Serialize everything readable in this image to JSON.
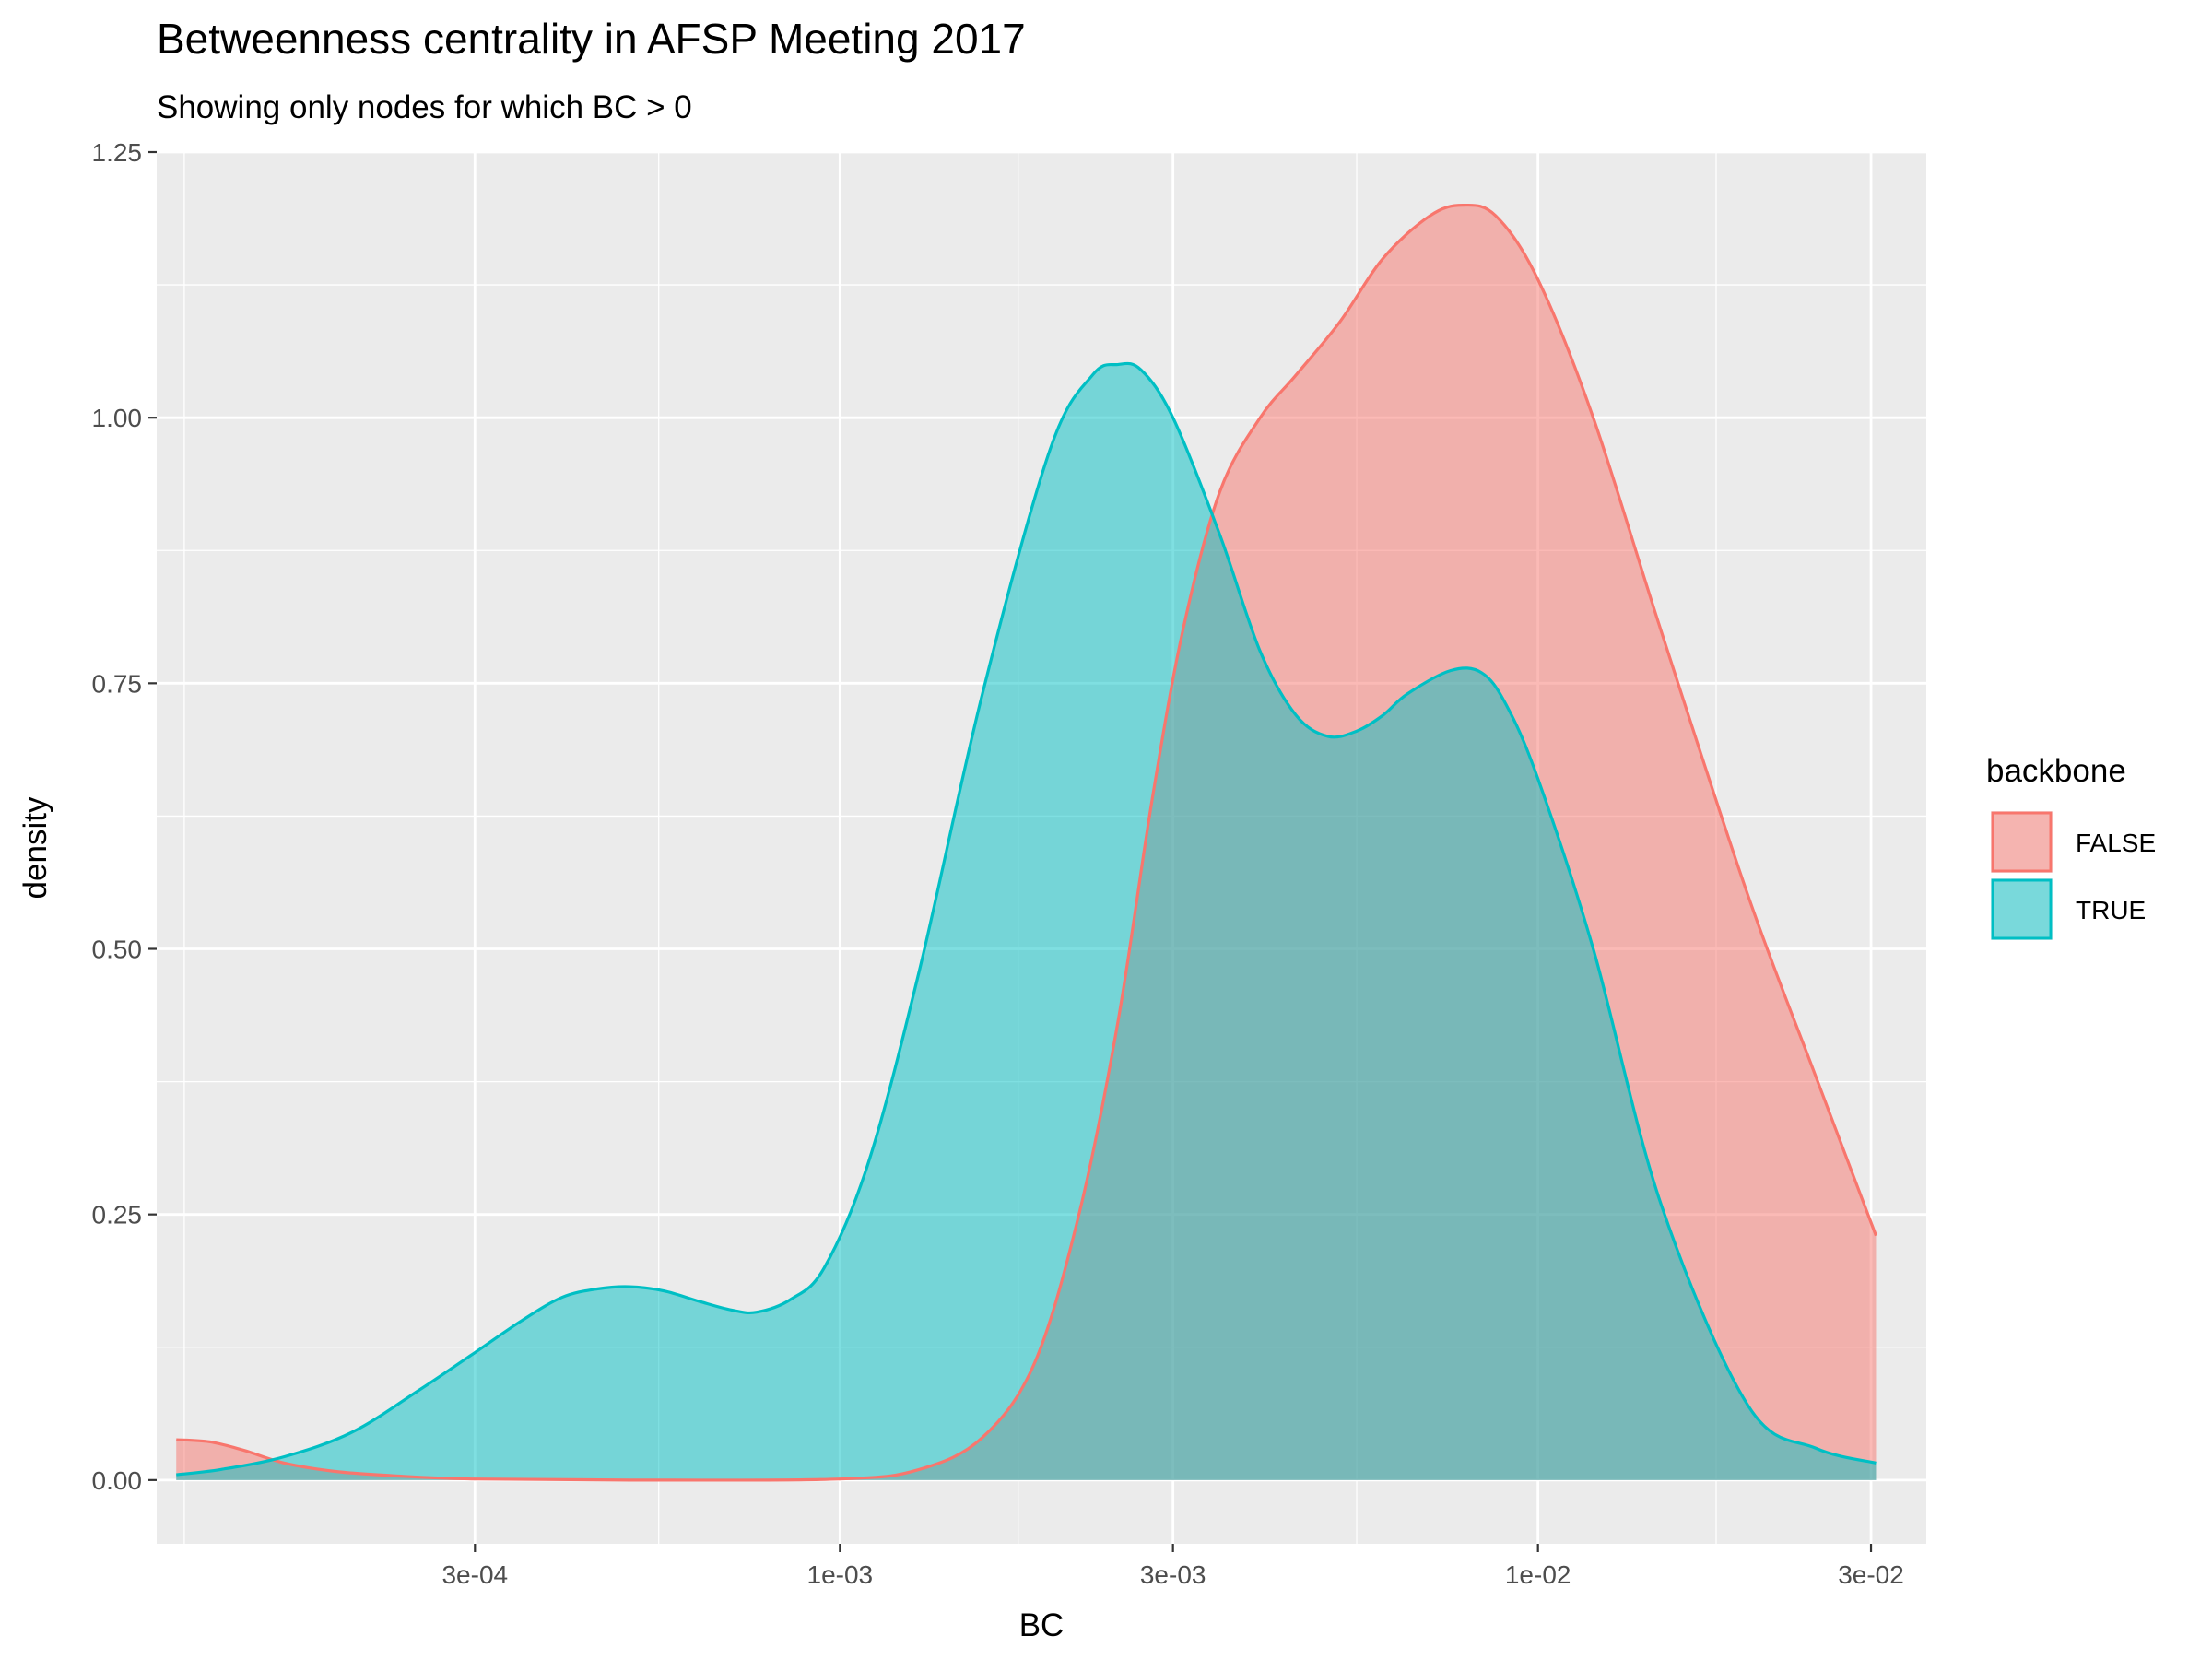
{
  "chart_data": {
    "type": "area",
    "title": "Betweenness centrality in AFSP Meeting 2017",
    "subtitle": "Showing only nodes for which BC > 0",
    "xlabel": "BC",
    "ylabel": "density",
    "x_scale": "log10",
    "xlim": [
      0.000105,
      0.036
    ],
    "ylim": [
      -0.06,
      1.25
    ],
    "x_ticks": [
      {
        "value": 0.0003,
        "label": "3e-04"
      },
      {
        "value": 0.001,
        "label": "1e-03"
      },
      {
        "value": 0.003,
        "label": "3e-03"
      },
      {
        "value": 0.01,
        "label": "1e-02"
      },
      {
        "value": 0.03,
        "label": "3e-02"
      }
    ],
    "x_minor_breaks": [
      0.000115,
      0.00055,
      0.0018,
      0.0055,
      0.018
    ],
    "y_ticks": [
      {
        "value": 0,
        "label": "0.00"
      },
      {
        "value": 0.25,
        "label": "0.25"
      },
      {
        "value": 0.5,
        "label": "0.50"
      },
      {
        "value": 0.75,
        "label": "0.75"
      },
      {
        "value": 1.0,
        "label": "1.00"
      },
      {
        "value": 1.25,
        "label": "1.25"
      }
    ],
    "y_minor_breaks": [
      0.125,
      0.375,
      0.625,
      0.875,
      1.125
    ],
    "grid": true,
    "legend": {
      "title": "backbone",
      "position": "right"
    },
    "series": [
      {
        "name": "FALSE",
        "line_color": "#F8766D",
        "fill_color": "#F8766D",
        "fill_opacity": 0.5,
        "x": [
          0.000112,
          0.000125,
          0.00014,
          0.00016,
          0.00019,
          0.00023,
          0.0003,
          0.0005,
          0.001,
          0.0013,
          0.0016,
          0.0019,
          0.0022,
          0.0025,
          0.0028,
          0.0031,
          0.0035,
          0.004,
          0.0045,
          0.0052,
          0.006,
          0.007,
          0.0078,
          0.0087,
          0.01,
          0.012,
          0.015,
          0.02,
          0.025,
          0.0305
        ],
        "y": [
          0.038,
          0.036,
          0.028,
          0.016,
          0.008,
          0.004,
          0.001,
          0.0,
          0.001,
          0.01,
          0.04,
          0.11,
          0.25,
          0.43,
          0.64,
          0.8,
          0.93,
          1.0,
          1.04,
          1.09,
          1.15,
          1.19,
          1.2,
          1.19,
          1.13,
          1.0,
          0.8,
          0.55,
          0.38,
          0.23
        ]
      },
      {
        "name": "TRUE",
        "line_color": "#00BFC4",
        "fill_color": "#00BFC4",
        "fill_opacity": 0.5,
        "x": [
          0.000112,
          0.00013,
          0.00016,
          0.0002,
          0.00025,
          0.0003,
          0.00035,
          0.0004,
          0.00045,
          0.0005,
          0.00056,
          0.00063,
          0.0007,
          0.00076,
          0.00085,
          0.00095,
          0.0011,
          0.0013,
          0.0016,
          0.002,
          0.0023,
          0.0025,
          0.0027,
          0.003,
          0.0035,
          0.004,
          0.0045,
          0.005,
          0.0055,
          0.006,
          0.0065,
          0.0075,
          0.0083,
          0.009,
          0.01,
          0.012,
          0.015,
          0.02,
          0.025,
          0.0305
        ],
        "y": [
          0.005,
          0.01,
          0.022,
          0.045,
          0.085,
          0.12,
          0.15,
          0.172,
          0.18,
          0.182,
          0.178,
          0.168,
          0.16,
          0.158,
          0.17,
          0.2,
          0.3,
          0.48,
          0.74,
          0.97,
          1.04,
          1.05,
          1.045,
          1.0,
          0.89,
          0.78,
          0.72,
          0.7,
          0.705,
          0.72,
          0.74,
          0.762,
          0.76,
          0.73,
          0.66,
          0.5,
          0.26,
          0.07,
          0.03,
          0.016
        ]
      }
    ]
  }
}
